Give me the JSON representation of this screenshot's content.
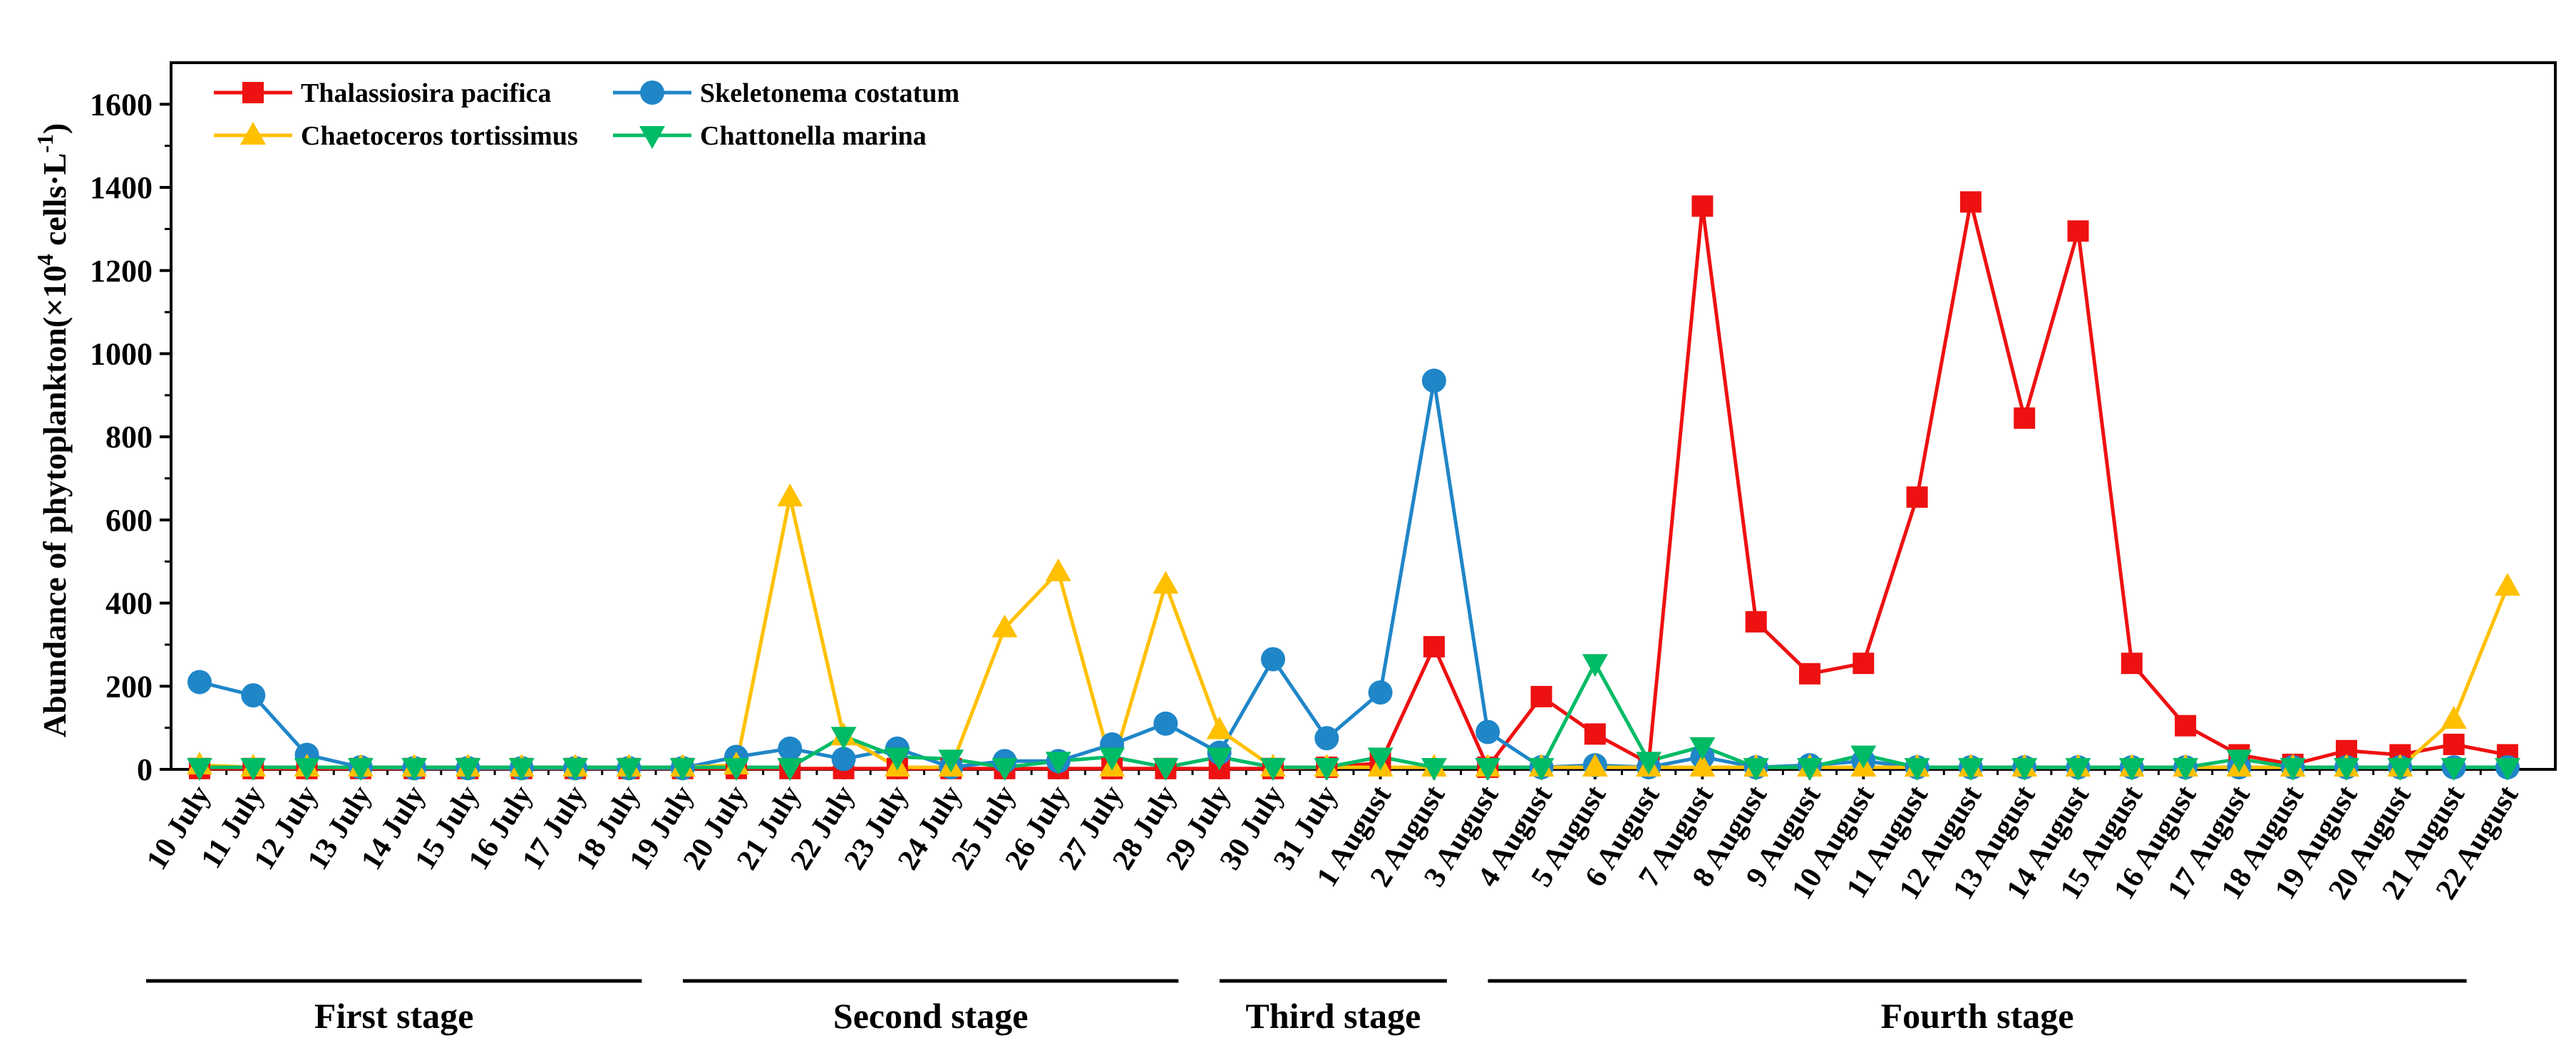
{
  "chart_data": {
    "type": "line",
    "title": "",
    "xlabel": "",
    "ylabel": "Abundance of phytoplankton(×10",
    "ylabel_sup1": "4",
    "ylabel_mid": " cells·L",
    "ylabel_sup2": "-1",
    "ylabel_end": ")",
    "ylim": [
      0,
      1700
    ],
    "yticks": [
      "0",
      "200",
      "400",
      "600",
      "800",
      "1000",
      "1200",
      "1400",
      "1600"
    ],
    "ytick_values": [
      0,
      200,
      400,
      600,
      800,
      1000,
      1200,
      1400,
      1600
    ],
    "categories": [
      "10 July",
      "11 July",
      "12 July",
      "13 July",
      "14 July",
      "15 July",
      "16 July",
      "17 July",
      "18 July",
      "19 July",
      "20 July",
      "21 July",
      "22 July",
      "23 July",
      "24 July",
      "25 July",
      "26 July",
      "27 July",
      "28 July",
      "29 July",
      "30 July",
      "31 July",
      "1 August",
      "2 August",
      "3 August",
      "4 August",
      "5 August",
      "6 August",
      "7 August",
      "8 August",
      "9 August",
      "10 August",
      "11 August",
      "12 August",
      "13 August",
      "14 August",
      "15 August",
      "16 August",
      "17 August",
      "18 August",
      "19 August",
      "20 August",
      "21 August",
      "22 August"
    ],
    "series": [
      {
        "name": "Thalassiosira pacifica",
        "color": "#ee1111",
        "marker": "square",
        "values": [
          2,
          2,
          2,
          2,
          2,
          2,
          2,
          2,
          2,
          2,
          2,
          2,
          2,
          2,
          2,
          2,
          2,
          2,
          2,
          2,
          2,
          5,
          15,
          295,
          5,
          175,
          85,
          15,
          1355,
          355,
          230,
          255,
          655,
          1365,
          845,
          1295,
          255,
          105,
          35,
          12,
          45,
          35,
          60,
          35
        ]
      },
      {
        "name": "Skeletonema costatum",
        "color": "#1f86c8",
        "marker": "circle",
        "values": [
          210,
          178,
          35,
          5,
          3,
          3,
          3,
          3,
          3,
          3,
          30,
          50,
          25,
          50,
          5,
          20,
          20,
          60,
          110,
          40,
          265,
          75,
          185,
          935,
          90,
          5,
          10,
          5,
          30,
          5,
          10,
          20,
          5,
          5,
          5,
          5,
          5,
          5,
          5,
          5,
          5,
          5,
          5,
          5
        ]
      },
      {
        "name": "Chaetoceros tortissimus",
        "color": "#ffc000",
        "marker": "triangle-up",
        "values": [
          10,
          5,
          5,
          5,
          5,
          5,
          5,
          5,
          5,
          5,
          10,
          655,
          80,
          5,
          5,
          340,
          475,
          5,
          445,
          95,
          5,
          5,
          5,
          5,
          5,
          5,
          5,
          5,
          5,
          5,
          5,
          5,
          5,
          5,
          5,
          5,
          5,
          5,
          5,
          5,
          5,
          5,
          120,
          440
        ]
      },
      {
        "name": "Chattonella marina",
        "color": "#00bb66",
        "marker": "triangle-down",
        "values": [
          5,
          5,
          5,
          5,
          5,
          5,
          5,
          5,
          5,
          5,
          5,
          5,
          80,
          30,
          25,
          5,
          20,
          30,
          5,
          30,
          5,
          5,
          30,
          5,
          5,
          5,
          255,
          20,
          55,
          5,
          5,
          35,
          5,
          5,
          5,
          5,
          5,
          5,
          25,
          5,
          5,
          5,
          5,
          5
        ]
      }
    ],
    "legend_position": "top-left",
    "stages": [
      {
        "label": "First stage",
        "from": 0,
        "to": 8
      },
      {
        "label": "Second stage",
        "from": 10,
        "to": 18
      },
      {
        "label": "Third stage",
        "from": 20,
        "to": 23
      },
      {
        "label": "Fourth stage",
        "from": 25,
        "to": 42
      }
    ]
  }
}
